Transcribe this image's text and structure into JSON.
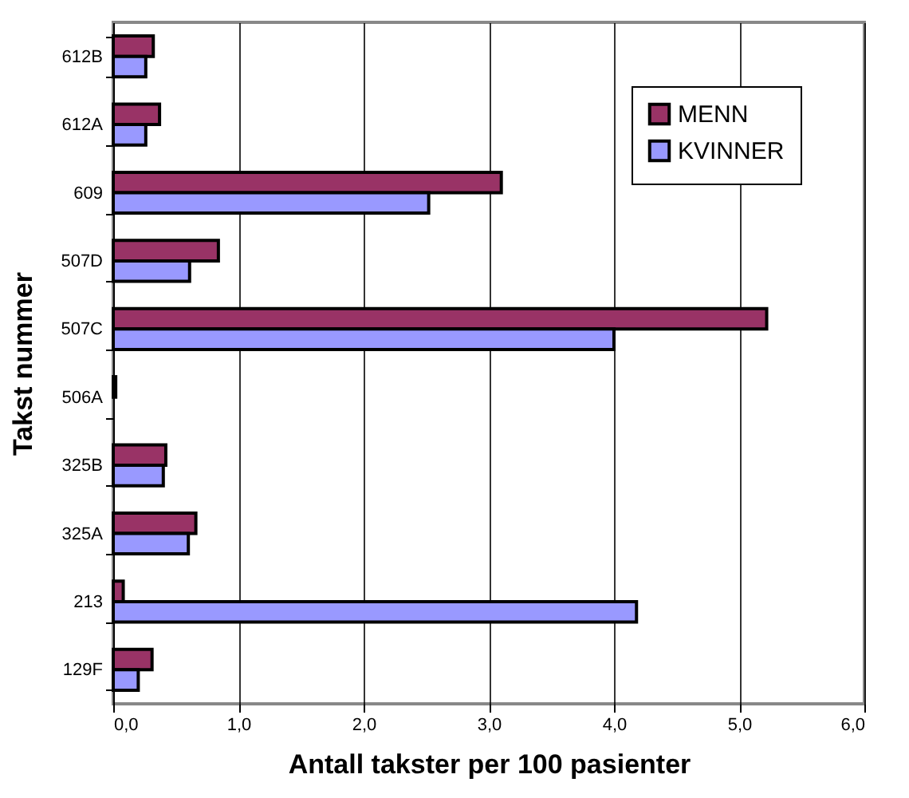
{
  "chart_data": {
    "type": "bar",
    "orientation": "horizontal",
    "xlabel": "Antall takster per 100 pasienter",
    "ylabel": "Takst nummer",
    "categories": [
      "612B",
      "612A",
      "609",
      "507D",
      "507C",
      "506A",
      "325B",
      "325A",
      "213",
      "129F"
    ],
    "series": [
      {
        "name": "MENN",
        "color": "#993366",
        "values": [
          0.32,
          0.37,
          3.1,
          0.84,
          5.22,
          0.02,
          0.42,
          0.66,
          0.08,
          0.31
        ]
      },
      {
        "name": "KVINNER",
        "color": "#9999ff",
        "values": [
          0.26,
          0.26,
          2.52,
          0.61,
          4.0,
          null,
          0.4,
          0.6,
          4.18,
          0.2
        ]
      }
    ],
    "xlim": [
      0,
      6
    ],
    "xticks": [
      {
        "value": 0,
        "label": "0,0"
      },
      {
        "value": 1,
        "label": "1,0"
      },
      {
        "value": 2,
        "label": "2,0"
      },
      {
        "value": 3,
        "label": "3,0"
      },
      {
        "value": 4,
        "label": "4,0"
      },
      {
        "value": 5,
        "label": "5,0"
      },
      {
        "value": 6,
        "label": "6,0"
      }
    ],
    "grid": "x",
    "legend": "top right"
  }
}
